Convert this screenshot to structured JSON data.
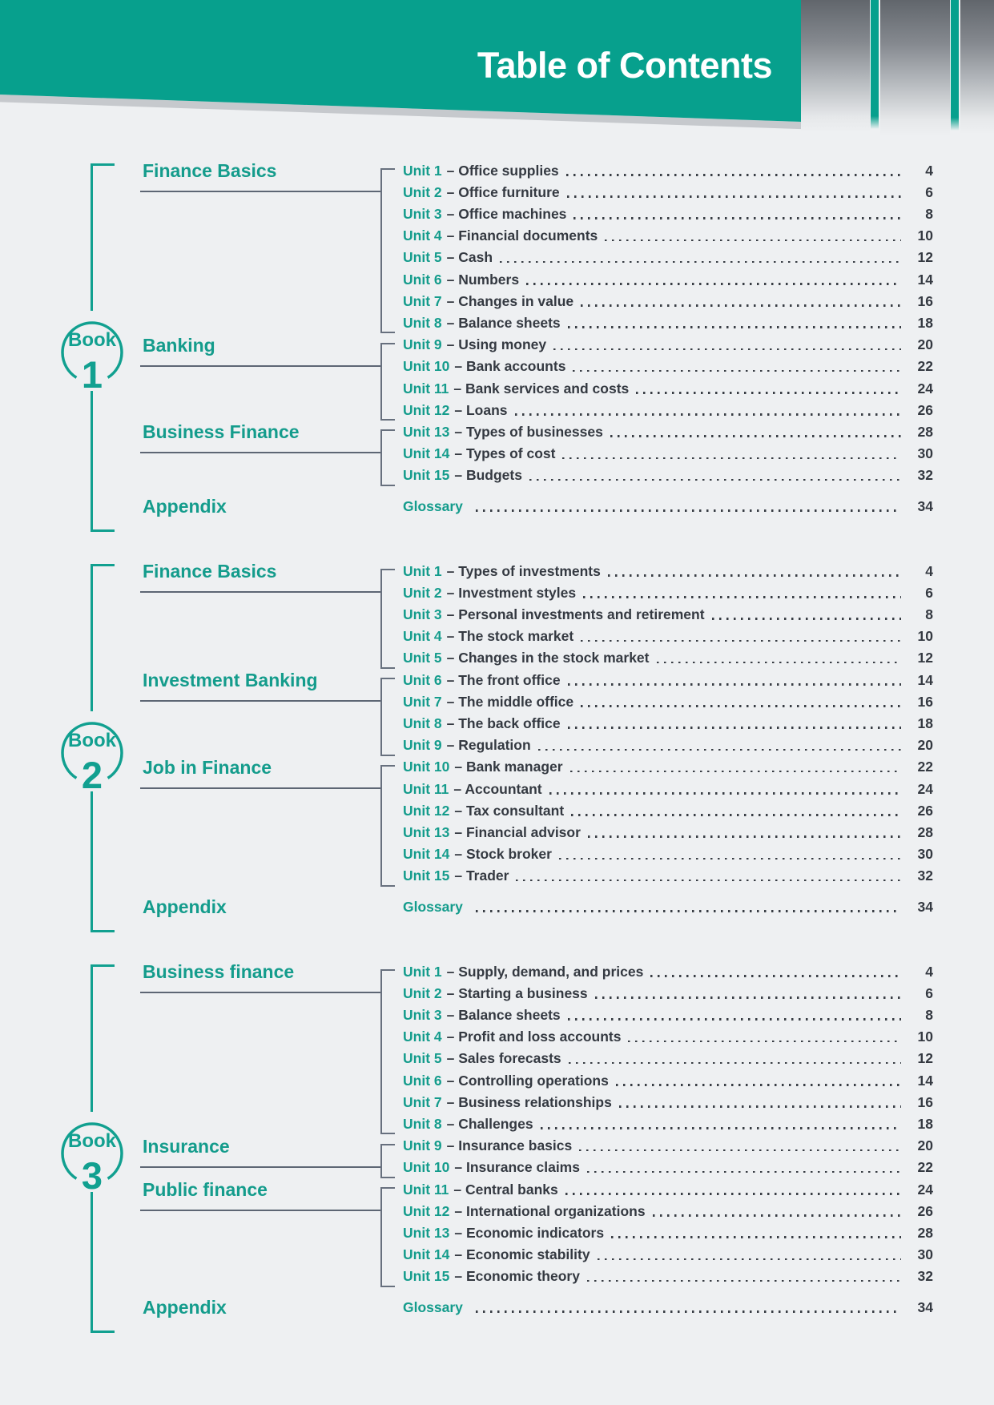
{
  "header": {
    "title": "Table of Contents"
  },
  "colors": {
    "accent_band": "#07a08d",
    "accent_text": "#149c8c",
    "rule_grey": "#67707e",
    "ink": "#343941",
    "page_background": "#eef0f2",
    "stripe_grey_top": "#61666c"
  },
  "books": [
    {
      "badge_label": "Book",
      "number": "1",
      "groups": [
        {
          "category": "Finance Basics",
          "units": [
            {
              "label": "Unit 1",
              "title": "Office supplies",
              "page": "4"
            },
            {
              "label": "Unit 2",
              "title": "Office furniture",
              "page": "6"
            },
            {
              "label": "Unit 3",
              "title": "Office machines",
              "page": "8"
            },
            {
              "label": "Unit 4",
              "title": "Financial documents",
              "page": "10"
            },
            {
              "label": "Unit 5",
              "title": "Cash",
              "page": "12"
            },
            {
              "label": "Unit 6",
              "title": "Numbers",
              "page": "14"
            },
            {
              "label": "Unit 7",
              "title": "Changes in value",
              "page": "16"
            },
            {
              "label": "Unit 8",
              "title": "Balance sheets",
              "page": "18"
            }
          ]
        },
        {
          "category": "Banking",
          "units": [
            {
              "label": "Unit 9",
              "title": "Using money",
              "page": "20"
            },
            {
              "label": "Unit 10",
              "title": "Bank accounts",
              "page": "22"
            },
            {
              "label": "Unit 11",
              "title": "Bank services and costs",
              "page": "24"
            },
            {
              "label": "Unit 12",
              "title": "Loans",
              "page": "26"
            }
          ]
        },
        {
          "category": "Business Finance",
          "units": [
            {
              "label": "Unit 13",
              "title": "Types of businesses",
              "page": "28"
            },
            {
              "label": "Unit 14",
              "title": "Types of cost",
              "page": "30"
            },
            {
              "label": "Unit 15",
              "title": "Budgets",
              "page": "32"
            }
          ]
        }
      ],
      "appendix": {
        "category": "Appendix",
        "title": "Glossary",
        "page": "34"
      }
    },
    {
      "badge_label": "Book",
      "number": "2",
      "groups": [
        {
          "category": "Finance Basics",
          "units": [
            {
              "label": "Unit 1",
              "title": "Types of investments",
              "page": "4"
            },
            {
              "label": "Unit 2",
              "title": "Investment styles",
              "page": "6"
            },
            {
              "label": "Unit 3",
              "title": "Personal investments and retirement",
              "page": "8"
            },
            {
              "label": "Unit 4",
              "title": "The stock market",
              "page": "10"
            },
            {
              "label": "Unit 5",
              "title": "Changes in the stock market",
              "page": "12"
            }
          ]
        },
        {
          "category": "Investment Banking",
          "units": [
            {
              "label": "Unit 6",
              "title": "The front office",
              "page": "14"
            },
            {
              "label": "Unit 7",
              "title": "The middle office",
              "page": "16"
            },
            {
              "label": "Unit 8",
              "title": "The back office",
              "page": "18"
            },
            {
              "label": "Unit 9",
              "title": "Regulation",
              "page": "20"
            }
          ]
        },
        {
          "category": "Job in Finance",
          "units": [
            {
              "label": "Unit 10",
              "title": "Bank manager",
              "page": "22"
            },
            {
              "label": "Unit 11",
              "title": "Accountant",
              "page": "24"
            },
            {
              "label": "Unit 12",
              "title": "Tax consultant",
              "page": "26"
            },
            {
              "label": "Unit 13",
              "title": "Financial advisor",
              "page": "28"
            },
            {
              "label": "Unit 14",
              "title": "Stock broker",
              "page": "30"
            },
            {
              "label": "Unit 15",
              "title": "Trader",
              "page": "32"
            }
          ]
        }
      ],
      "appendix": {
        "category": "Appendix",
        "title": "Glossary",
        "page": "34"
      }
    },
    {
      "badge_label": "Book",
      "number": "3",
      "groups": [
        {
          "category": "Business finance",
          "units": [
            {
              "label": "Unit 1",
              "title": "Supply, demand, and prices",
              "page": "4"
            },
            {
              "label": "Unit 2",
              "title": "Starting a business",
              "page": "6"
            },
            {
              "label": "Unit 3",
              "title": "Balance sheets",
              "page": "8"
            },
            {
              "label": "Unit 4",
              "title": "Profit and loss accounts",
              "page": "10"
            },
            {
              "label": "Unit 5",
              "title": "Sales forecasts",
              "page": "12"
            },
            {
              "label": "Unit 6",
              "title": "Controlling operations",
              "page": "14"
            },
            {
              "label": "Unit 7",
              "title": "Business relationships",
              "page": "16"
            },
            {
              "label": "Unit 8",
              "title": "Challenges",
              "page": "18"
            }
          ]
        },
        {
          "category": "Insurance",
          "units": [
            {
              "label": "Unit 9",
              "title": "Insurance basics",
              "page": "20"
            },
            {
              "label": "Unit 10",
              "title": "Insurance claims",
              "page": "22"
            }
          ]
        },
        {
          "category": "Public finance",
          "units": [
            {
              "label": "Unit 11",
              "title": "Central banks",
              "page": "24"
            },
            {
              "label": "Unit 12",
              "title": "International organizations",
              "page": "26"
            },
            {
              "label": "Unit 13",
              "title": "Economic indicators",
              "page": "28"
            },
            {
              "label": "Unit 14",
              "title": "Economic stability",
              "page": "30"
            },
            {
              "label": "Unit 15",
              "title": "Economic theory",
              "page": "32"
            }
          ]
        }
      ],
      "appendix": {
        "category": "Appendix",
        "title": "Glossary",
        "page": "34"
      }
    }
  ]
}
